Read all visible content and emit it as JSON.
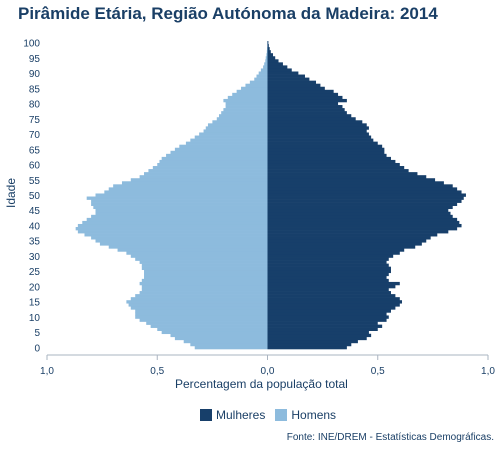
{
  "chart_data": {
    "type": "bar",
    "orientation": "horizontal-population-pyramid",
    "title": "Pirâmide Etária, Região Autónoma da Madeira: 2014",
    "xlabel": "Percentagem da população total",
    "ylabel": "Idade",
    "xlim": [
      -1.0,
      1.0
    ],
    "ylim": [
      0,
      100
    ],
    "x_tick_values": [
      -1.0,
      -0.5,
      0.0,
      0.5,
      1.0
    ],
    "x_tick_labels": [
      "1,0",
      "0,5",
      "0,0",
      "0,5",
      "1,0"
    ],
    "y_ticks": [
      0,
      5,
      10,
      15,
      20,
      25,
      30,
      35,
      40,
      45,
      50,
      55,
      60,
      65,
      70,
      75,
      80,
      85,
      90,
      95,
      100
    ],
    "grid": false,
    "legend_position": "bottom",
    "source": "Fonte: INE/DREM - Estatísticas Demográficas.",
    "ages": [
      0,
      1,
      2,
      3,
      4,
      5,
      6,
      7,
      8,
      9,
      10,
      11,
      12,
      13,
      14,
      15,
      16,
      17,
      18,
      19,
      20,
      21,
      22,
      23,
      24,
      25,
      26,
      27,
      28,
      29,
      30,
      31,
      32,
      33,
      34,
      35,
      36,
      37,
      38,
      39,
      40,
      41,
      42,
      43,
      44,
      45,
      46,
      47,
      48,
      49,
      50,
      51,
      52,
      53,
      54,
      55,
      56,
      57,
      58,
      59,
      60,
      61,
      62,
      63,
      64,
      65,
      66,
      67,
      68,
      69,
      70,
      71,
      72,
      73,
      74,
      75,
      76,
      77,
      78,
      79,
      80,
      81,
      82,
      83,
      84,
      85,
      86,
      87,
      88,
      89,
      90,
      91,
      92,
      93,
      94,
      95,
      96,
      97,
      98,
      99,
      100
    ],
    "series": [
      {
        "name": "Mulheres",
        "color": "#173f6a",
        "side": "right",
        "values": [
          0.36,
          0.38,
          0.41,
          0.45,
          0.47,
          0.46,
          0.5,
          0.52,
          0.5,
          0.54,
          0.55,
          0.54,
          0.56,
          0.58,
          0.6,
          0.61,
          0.6,
          0.58,
          0.56,
          0.55,
          0.58,
          0.6,
          0.55,
          0.54,
          0.55,
          0.56,
          0.56,
          0.55,
          0.54,
          0.55,
          0.57,
          0.6,
          0.62,
          0.67,
          0.7,
          0.72,
          0.74,
          0.77,
          0.82,
          0.86,
          0.88,
          0.87,
          0.86,
          0.84,
          0.83,
          0.82,
          0.84,
          0.86,
          0.88,
          0.89,
          0.9,
          0.88,
          0.86,
          0.84,
          0.8,
          0.76,
          0.72,
          0.68,
          0.64,
          0.62,
          0.6,
          0.58,
          0.56,
          0.54,
          0.53,
          0.53,
          0.52,
          0.5,
          0.48,
          0.47,
          0.46,
          0.45,
          0.46,
          0.45,
          0.43,
          0.4,
          0.38,
          0.36,
          0.35,
          0.34,
          0.32,
          0.36,
          0.34,
          0.32,
          0.3,
          0.26,
          0.24,
          0.22,
          0.19,
          0.17,
          0.14,
          0.11,
          0.09,
          0.07,
          0.05,
          0.035,
          0.025,
          0.015,
          0.01,
          0.006,
          0.004
        ]
      },
      {
        "name": "Homens",
        "color": "#8dbbdd",
        "side": "left",
        "values": [
          0.33,
          0.35,
          0.38,
          0.42,
          0.44,
          0.48,
          0.5,
          0.53,
          0.55,
          0.58,
          0.6,
          0.6,
          0.6,
          0.62,
          0.63,
          0.64,
          0.62,
          0.6,
          0.58,
          0.57,
          0.57,
          0.58,
          0.57,
          0.56,
          0.56,
          0.56,
          0.57,
          0.57,
          0.58,
          0.6,
          0.62,
          0.64,
          0.68,
          0.72,
          0.76,
          0.78,
          0.8,
          0.83,
          0.86,
          0.87,
          0.86,
          0.84,
          0.82,
          0.8,
          0.78,
          0.78,
          0.79,
          0.8,
          0.8,
          0.82,
          0.78,
          0.74,
          0.72,
          0.7,
          0.66,
          0.62,
          0.58,
          0.56,
          0.54,
          0.52,
          0.5,
          0.49,
          0.48,
          0.46,
          0.44,
          0.42,
          0.4,
          0.37,
          0.35,
          0.33,
          0.31,
          0.29,
          0.28,
          0.27,
          0.25,
          0.23,
          0.22,
          0.21,
          0.2,
          0.19,
          0.19,
          0.2,
          0.18,
          0.16,
          0.14,
          0.12,
          0.1,
          0.08,
          0.06,
          0.05,
          0.04,
          0.03,
          0.02,
          0.015,
          0.01,
          0.008,
          0.005,
          0.003,
          0.002,
          0.001,
          0.001
        ]
      }
    ]
  }
}
